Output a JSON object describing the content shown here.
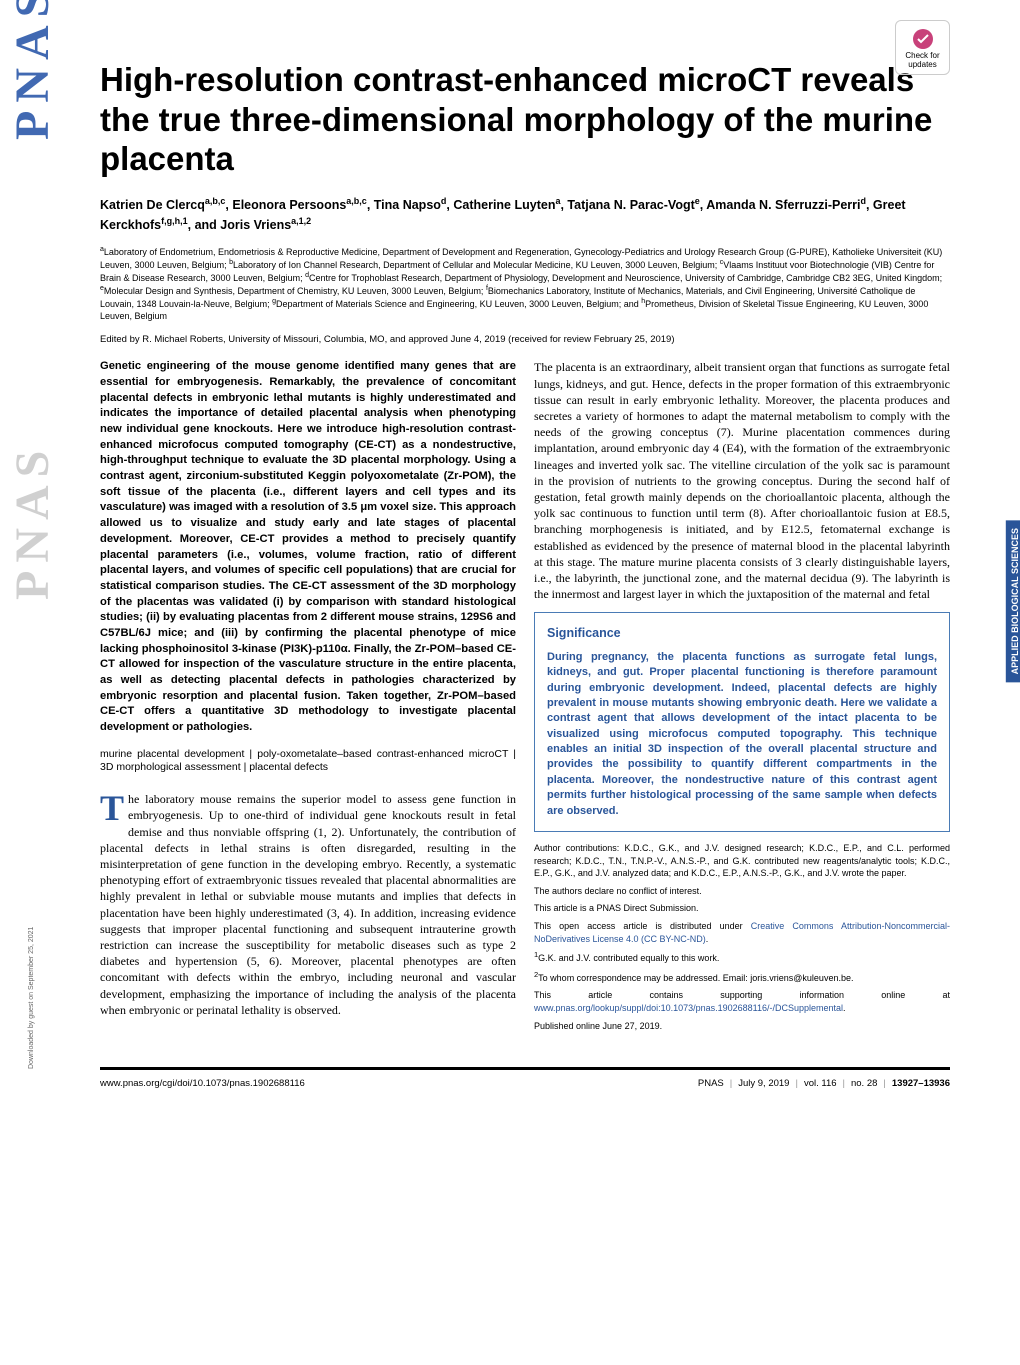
{
  "title": "High-resolution contrast-enhanced microCT reveals the true three-dimensional morphology of the murine placenta",
  "authors_html": "Katrien De Clercq<sup>a,b,c</sup>, Eleonora Persoons<sup>a,b,c</sup>, Tina Napso<sup>d</sup>, Catherine Luyten<sup>a</sup>, Tatjana N. Parac-Vogt<sup>e</sup>, Amanda N. Sferruzzi-Perri<sup>d</sup>, Greet Kerckhofs<sup>f,g,h,1</sup>, and Joris Vriens<sup>a,1,2</sup>",
  "affiliations": "<sup>a</sup>Laboratory of Endometrium, Endometriosis & Reproductive Medicine, Department of Development and Regeneration, Gynecology-Pediatrics and Urology Research Group (G-PURE), Katholieke Universiteit (KU) Leuven, 3000 Leuven, Belgium; <sup>b</sup>Laboratory of Ion Channel Research, Department of Cellular and Molecular Medicine, KU Leuven, 3000 Leuven, Belgium; <sup>c</sup>Vlaams Instituut voor Biotechnologie (VIB) Centre for Brain & Disease Research, 3000 Leuven, Belgium; <sup>d</sup>Centre for Trophoblast Research, Department of Physiology, Development and Neuroscience, University of Cambridge, Cambridge CB2 3EG, United Kingdom; <sup>e</sup>Molecular Design and Synthesis, Department of Chemistry, KU Leuven, 3000 Leuven, Belgium; <sup>f</sup>Biomechanics Laboratory, Institute of Mechanics, Materials, and Civil Engineering, Université Catholique de Louvain, 1348 Louvain-la-Neuve, Belgium; <sup>g</sup>Department of Materials Science and Engineering, KU Leuven, 3000 Leuven, Belgium; and <sup>h</sup>Prometheus, Division of Skeletal Tissue Engineering, KU Leuven, 3000 Leuven, Belgium",
  "edited": "Edited by R. Michael Roberts, University of Missouri, Columbia, MO, and approved June 4, 2019 (received for review February 25, 2019)",
  "abstract": "Genetic engineering of the mouse genome identified many genes that are essential for embryogenesis. Remarkably, the prevalence of concomitant placental defects in embryonic lethal mutants is highly underestimated and indicates the importance of detailed placental analysis when phenotyping new individual gene knockouts. Here we introduce high-resolution contrast-enhanced microfocus computed tomography (CE-CT) as a nondestructive, high-throughput technique to evaluate the 3D placental morphology. Using a contrast agent, zirconium-substituted Keggin polyoxometalate (Zr-POM), the soft tissue of the placenta (i.e., different layers and cell types and its vasculature) was imaged with a resolution of 3.5 μm voxel size. This approach allowed us to visualize and study early and late stages of placental development. Moreover, CE-CT provides a method to precisely quantify placental parameters (i.e., volumes, volume fraction, ratio of different placental layers, and volumes of specific cell populations) that are crucial for statistical comparison studies. The CE-CT assessment of the 3D morphology of the placentas was validated (i) by comparison with standard histological studies; (ii) by evaluating placentas from 2 different mouse strains, 129S6 and C57BL/6J mice; and (iii) by confirming the placental phenotype of mice lacking phosphoinositol 3-kinase (PI3K)-p110α. Finally, the Zr-POM–based CE-CT allowed for inspection of the vasculature structure in the entire placenta, as well as detecting placental defects in pathologies characterized by embryonic resorption and placental fusion. Taken together, Zr-POM–based CE-CT offers a quantitative 3D methodology to investigate placental development or pathologies.",
  "keywords": "murine placental development | poly-oxometalate–based contrast-enhanced microCT | 3D morphological assessment | placental defects",
  "intro_p1_first": "T",
  "intro_p1": "he laboratory mouse remains the superior model to assess gene function in embryogenesis. Up to one-third of individual gene knockouts result in fetal demise and thus nonviable offspring (1, 2). Unfortunately, the contribution of placental defects in lethal strains is often disregarded, resulting in the misinterpretation of gene function in the developing embryo. Recently, a systematic phenotyping effort of extraembryonic tissues revealed that placental abnormalities are highly prevalent in lethal or subviable mouse mutants and implies that defects in placentation have been highly underestimated (3, 4). In addition, increasing evidence suggests that improper placental functioning and subsequent intrauterine growth restriction can increase the susceptibility for metabolic diseases such as type 2 diabetes and hypertension (5, 6). Moreover, placental phenotypes are often concomitant with defects within the embryo, including neuronal and vascular development, emphasizing the importance of including the analysis of the placenta when embryonic or perinatal lethality is observed.",
  "intro_p2": "The placenta is an extraordinary, albeit transient organ that functions as surrogate fetal lungs, kidneys, and gut. Hence, defects in the proper formation of this extraembryonic tissue can result in early embryonic lethality. Moreover, the placenta produces and secretes a variety of hormones to adapt the maternal metabolism to comply with the needs of the growing conceptus (7). Murine placentation commences during implantation, around embryonic day 4 (E4), with the formation of the extraembryonic lineages and inverted yolk sac. The vitelline circulation of the yolk sac is paramount in the provision of nutrients to the growing conceptus. During the second half of gestation, fetal growth mainly depends on the chorioallantoic placenta, although the yolk sac continuous to function until term (8). After chorioallantoic fusion at E8.5, branching morphogenesis is initiated, and by E12.5, fetomaternal exchange is established as evidenced by the presence of maternal blood in the placental labyrinth at this stage. The mature murine placenta consists of 3 clearly distinguishable layers, i.e., the labyrinth, the junctional zone, and the maternal decidua (9). The labyrinth is the innermost and largest layer in which the juxtaposition of the maternal and fetal",
  "sig_title": "Significance",
  "sig_text": "During pregnancy, the placenta functions as surrogate fetal lungs, kidneys, and gut. Proper placental functioning is therefore paramount during embryonic development. Indeed, placental defects are highly prevalent in mouse mutants showing embryonic death. Here we validate a contrast agent that allows development of the intact placenta to be visualized using microfocus computed topography. This technique enables an initial 3D inspection of the overall placental structure and provides the possibility to quantify different compartments in the placenta. Moreover, the nondestructive nature of this contrast agent permits further histological processing of the same sample when defects are observed.",
  "contrib": "Author contributions: K.D.C., G.K., and J.V. designed research; K.D.C., E.P., and C.L. performed research; K.D.C., T.N., T.N.P.-V., A.N.S.-P., and G.K. contributed new reagents/analytic tools; K.D.C., E.P., G.K., and J.V. analyzed data; and K.D.C., E.P., A.N.S.-P., G.K., and J.V. wrote the paper.",
  "conflict": "The authors declare no conflict of interest.",
  "direct": "This article is a PNAS Direct Submission.",
  "license_pre": "This open access article is distributed under ",
  "license_link": "Creative Commons Attribution-Noncommercial-NoDerivatives License 4.0 (CC BY-NC-ND)",
  "note1": "<sup>1</sup>G.K. and J.V. contributed equally to this work.",
  "note2": "<sup>2</sup>To whom correspondence may be addressed. Email: joris.vriens@kuleuven.be.",
  "supp_pre": "This article contains supporting information online at ",
  "supp_link": "www.pnas.org/lookup/suppl/doi:10.1073/pnas.1902688116/-/DCSupplemental",
  "pub": "Published online June 27, 2019.",
  "side_category": "APPLIED BIOLOGICAL SCIENCES",
  "footer_doi": "www.pnas.org/cgi/doi/10.1073/pnas.1902688116",
  "footer_date": "July 9, 2019",
  "footer_vol": "vol. 116",
  "footer_no": "no. 28",
  "footer_pages": "13927–13936",
  "footer_journal": "PNAS",
  "updates_label": "Check for updates",
  "download_note": "Downloaded by guest on September 25, 2021",
  "pnas_text": "PNAS",
  "colors": {
    "link": "#2a5599",
    "side_bg": "#2a5599",
    "pnas_blue": "#4169b2"
  }
}
